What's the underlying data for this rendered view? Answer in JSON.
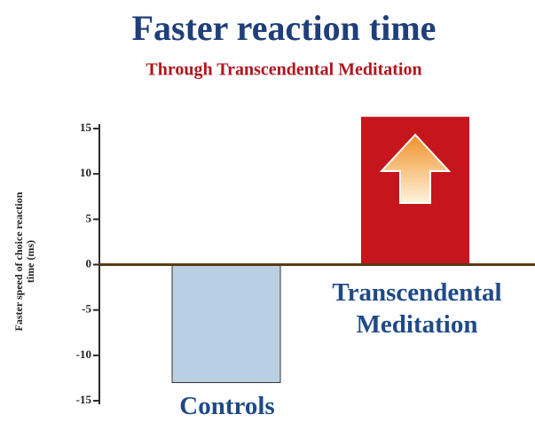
{
  "chart_data": {
    "type": "bar",
    "title": "Faster reaction time",
    "subtitle": "Through Transcendental Meditation",
    "y_label": "Faster speed of choice reaction time (ms)",
    "categories": [
      "Controls",
      "Transcendental Meditation"
    ],
    "values": [
      -13,
      16.3
    ],
    "colors": [
      "#b8d0e2",
      "#c4161c"
    ],
    "ylim": [
      -15,
      15
    ],
    "yticks": [
      -15,
      -10,
      -5,
      0,
      5,
      10,
      15
    ]
  }
}
